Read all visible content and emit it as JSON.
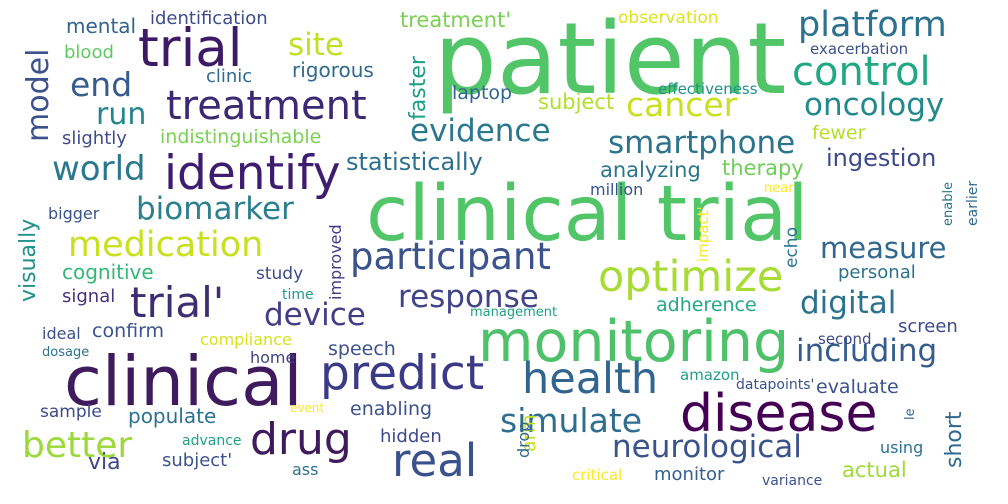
{
  "words": [
    {
      "text": "patient",
      "color": "#52c569"
    },
    {
      "text": "clinical trial",
      "color": "#52c569"
    },
    {
      "text": "clinical",
      "color": "#3f1a5c"
    },
    {
      "text": "monitoring",
      "color": "#4fc16b"
    },
    {
      "text": "disease",
      "color": "#440154"
    },
    {
      "text": "trial",
      "color": "#3d1a66"
    },
    {
      "text": "identify",
      "color": "#3e1d70"
    },
    {
      "text": "treatment",
      "color": "#3b2a73"
    },
    {
      "text": "predict",
      "color": "#3a3a86"
    },
    {
      "text": "health",
      "color": "#31648e"
    },
    {
      "text": "real",
      "color": "#3b518b"
    },
    {
      "text": "drug",
      "color": "#3f1a5c"
    },
    {
      "text": "optimize",
      "color": "#a8db34"
    },
    {
      "text": "trial'",
      "color": "#3d2d72"
    },
    {
      "text": "simulate",
      "color": "#2f6e8e"
    },
    {
      "text": "neurological",
      "color": "#3a538b"
    },
    {
      "text": "participant",
      "color": "#3b528b"
    },
    {
      "text": "medication",
      "color": "#c8e020"
    },
    {
      "text": "biomarker",
      "color": "#2c7f8e"
    },
    {
      "text": "world",
      "color": "#2a788e"
    },
    {
      "text": "evidence",
      "color": "#2a788e"
    },
    {
      "text": "cancer",
      "color": "#c8e020"
    },
    {
      "text": "control",
      "color": "#22a884"
    },
    {
      "text": "platform",
      "color": "#2c728e"
    },
    {
      "text": "oncology",
      "color": "#23898e"
    },
    {
      "text": "smartphone",
      "color": "#2c738e"
    },
    {
      "text": "response",
      "color": "#414487"
    },
    {
      "text": "device",
      "color": "#433d84"
    },
    {
      "text": "digital",
      "color": "#2c728e"
    },
    {
      "text": "measure",
      "color": "#31688e"
    },
    {
      "text": "including",
      "color": "#365c8d"
    },
    {
      "text": "better",
      "color": "#9bd93c"
    },
    {
      "text": "site",
      "color": "#c2df23"
    },
    {
      "text": "end",
      "color": "#365c8d"
    },
    {
      "text": "run",
      "color": "#25858e"
    },
    {
      "text": "model",
      "color": "#3b528b"
    },
    {
      "text": "statistically",
      "color": "#2d708e"
    },
    {
      "text": "indistinguishable",
      "color": "#7ad151"
    },
    {
      "text": "ingestion",
      "color": "#3e4989"
    },
    {
      "text": "analyzing",
      "color": "#2a768e"
    },
    {
      "text": "therapy",
      "color": "#6ece58"
    },
    {
      "text": "subject",
      "color": "#b5de2b"
    },
    {
      "text": "treatment'",
      "color": "#7ad151"
    },
    {
      "text": "rigorous",
      "color": "#30698e"
    },
    {
      "text": "clinic",
      "color": "#31688e"
    },
    {
      "text": "laptop",
      "color": "#31668e"
    },
    {
      "text": "faster",
      "color": "#1f9e89"
    },
    {
      "text": "fewer",
      "color": "#b5de2b"
    },
    {
      "text": "mental",
      "color": "#33638d"
    },
    {
      "text": "identification",
      "color": "#3e4c8a"
    },
    {
      "text": "blood",
      "color": "#5ec962"
    },
    {
      "text": "observation",
      "color": "#dde318"
    },
    {
      "text": "exacerbation",
      "color": "#3b528b"
    },
    {
      "text": "effectiveness",
      "color": "#21918c"
    },
    {
      "text": "slightly",
      "color": "#3e4c8a"
    },
    {
      "text": "visually",
      "color": "#21918c"
    },
    {
      "text": "cognitive",
      "color": "#35b779"
    },
    {
      "text": "signal",
      "color": "#46337e"
    },
    {
      "text": "study",
      "color": "#3e4a89"
    },
    {
      "text": "improved",
      "color": "#443983"
    },
    {
      "text": "time",
      "color": "#1f9a8a"
    },
    {
      "text": "echo",
      "color": "#2a788e"
    },
    {
      "text": "impact'",
      "color": "#fde725"
    },
    {
      "text": "personal",
      "color": "#2c728e"
    },
    {
      "text": "adherence",
      "color": "#22a884"
    },
    {
      "text": "confirm",
      "color": "#3b528b"
    },
    {
      "text": "compliance",
      "color": "#d8e219"
    },
    {
      "text": "management",
      "color": "#1fa188"
    },
    {
      "text": "ideal",
      "color": "#3b528b"
    },
    {
      "text": "dosage",
      "color": "#2c728e"
    },
    {
      "text": "home",
      "color": "#414487"
    },
    {
      "text": "speech",
      "color": "#3b528b"
    },
    {
      "text": "screen",
      "color": "#3e4989"
    },
    {
      "text": "second",
      "color": "#3e4989"
    },
    {
      "text": "amazon",
      "color": "#1f9e89"
    },
    {
      "text": "datapoints'",
      "color": "#3a538b"
    },
    {
      "text": "evaluate",
      "color": "#3b528b"
    },
    {
      "text": "short",
      "color": "#30698e"
    },
    {
      "text": "sample",
      "color": "#3e4989"
    },
    {
      "text": "populate",
      "color": "#2c728e"
    },
    {
      "text": "enabling",
      "color": "#3b528b"
    },
    {
      "text": "event",
      "color": "#fde725"
    },
    {
      "text": "le",
      "color": "#32648e"
    },
    {
      "text": "hidden",
      "color": "#3e4989"
    },
    {
      "text": "advance",
      "color": "#1fa188"
    },
    {
      "text": "using",
      "color": "#2c728e"
    },
    {
      "text": "via",
      "color": "#3f4788"
    },
    {
      "text": "subject'",
      "color": "#3b528b"
    },
    {
      "text": "ass",
      "color": "#2c728e"
    },
    {
      "text": "arm",
      "color": "#c8e020"
    },
    {
      "text": "drop",
      "color": "#30698e"
    },
    {
      "text": "critical",
      "color": "#fde725"
    },
    {
      "text": "monitor",
      "color": "#355f8d"
    },
    {
      "text": "variance",
      "color": "#3b528b"
    },
    {
      "text": "actual",
      "color": "#a0da39"
    },
    {
      "text": "bigger",
      "color": "#3b528b"
    },
    {
      "text": "million",
      "color": "#3b528b"
    },
    {
      "text": "near",
      "color": "#fde725"
    },
    {
      "text": "enable",
      "color": "#2c728e"
    },
    {
      "text": "earlier",
      "color": "#30698e"
    }
  ]
}
